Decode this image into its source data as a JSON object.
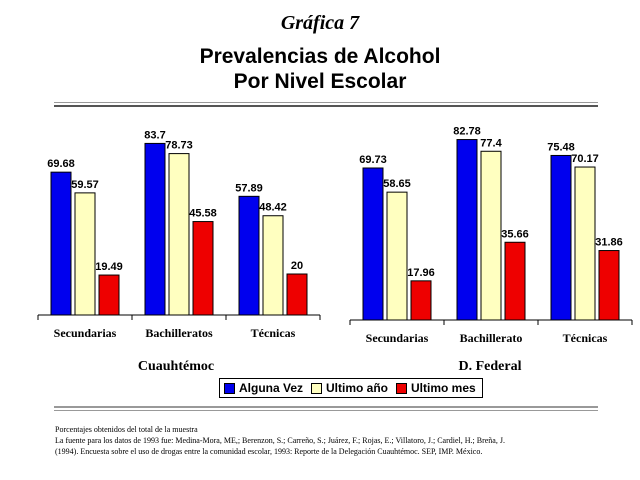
{
  "figure_label": "Gráfica 7",
  "title_line1": "Prevalencias de Alcohol",
  "title_line2": "Por Nivel Escolar",
  "colors": {
    "alguna_vez": "#0000ee",
    "ultimo_ano": "#ffffc0",
    "ultimo_mes": "#ee0000"
  },
  "legend": [
    "Alguna Vez",
    "Ultimo año",
    "Ultimo mes"
  ],
  "footer": {
    "line1": "Porcentajes obtenidos del total de la muestra",
    "line2": "La fuente para los datos de 1993 fue: Medina-Mora, ME,; Berenzon, S.; Carreño, S.; Juárez, F.; Rojas, E.; Villatoro, J.; Cardiel, H.; Breña, J.",
    "line3": "(1994). Encuesta sobre el uso de drogas entre la comunidad escolar, 1993: Reporte de la Delegación Cuauhtémoc. SEP, IMP. México."
  },
  "chart_data": [
    {
      "type": "bar",
      "title": "Cuauhtémoc",
      "categories": [
        "Secundarias",
        "Bachilleratos",
        "Técnicas"
      ],
      "series": [
        {
          "name": "Alguna Vez",
          "values": [
            69.68,
            83.7,
            57.89
          ]
        },
        {
          "name": "Ultimo año",
          "values": [
            59.57,
            78.73,
            48.42
          ]
        },
        {
          "name": "Ultimo mes",
          "values": [
            19.49,
            45.58,
            20
          ]
        }
      ],
      "value_labels": [
        [
          "69.68",
          "83.7",
          "57.89"
        ],
        [
          "59.57",
          "78.73",
          "48.42"
        ],
        [
          "19.49",
          "45.58",
          "20"
        ]
      ],
      "ylim": [
        0,
        100
      ],
      "grid": false,
      "legend_position": "bottom"
    },
    {
      "type": "bar",
      "title": "D. Federal",
      "categories": [
        "Secundarias",
        "Bachillerato",
        "Técnicas"
      ],
      "series": [
        {
          "name": "Alguna Vez",
          "values": [
            69.73,
            82.78,
            75.48
          ]
        },
        {
          "name": "Ultimo año",
          "values": [
            58.65,
            77.4,
            70.17
          ]
        },
        {
          "name": "Ultimo mes",
          "values": [
            17.96,
            35.66,
            31.86
          ]
        }
      ],
      "value_labels": [
        [
          "69.73",
          "82.78",
          "75.48"
        ],
        [
          "58.65",
          "77.4",
          "70.17"
        ],
        [
          "17.96",
          "35.66",
          "31.86"
        ]
      ],
      "ylim": [
        0,
        100
      ],
      "grid": false,
      "legend_position": "bottom"
    }
  ]
}
